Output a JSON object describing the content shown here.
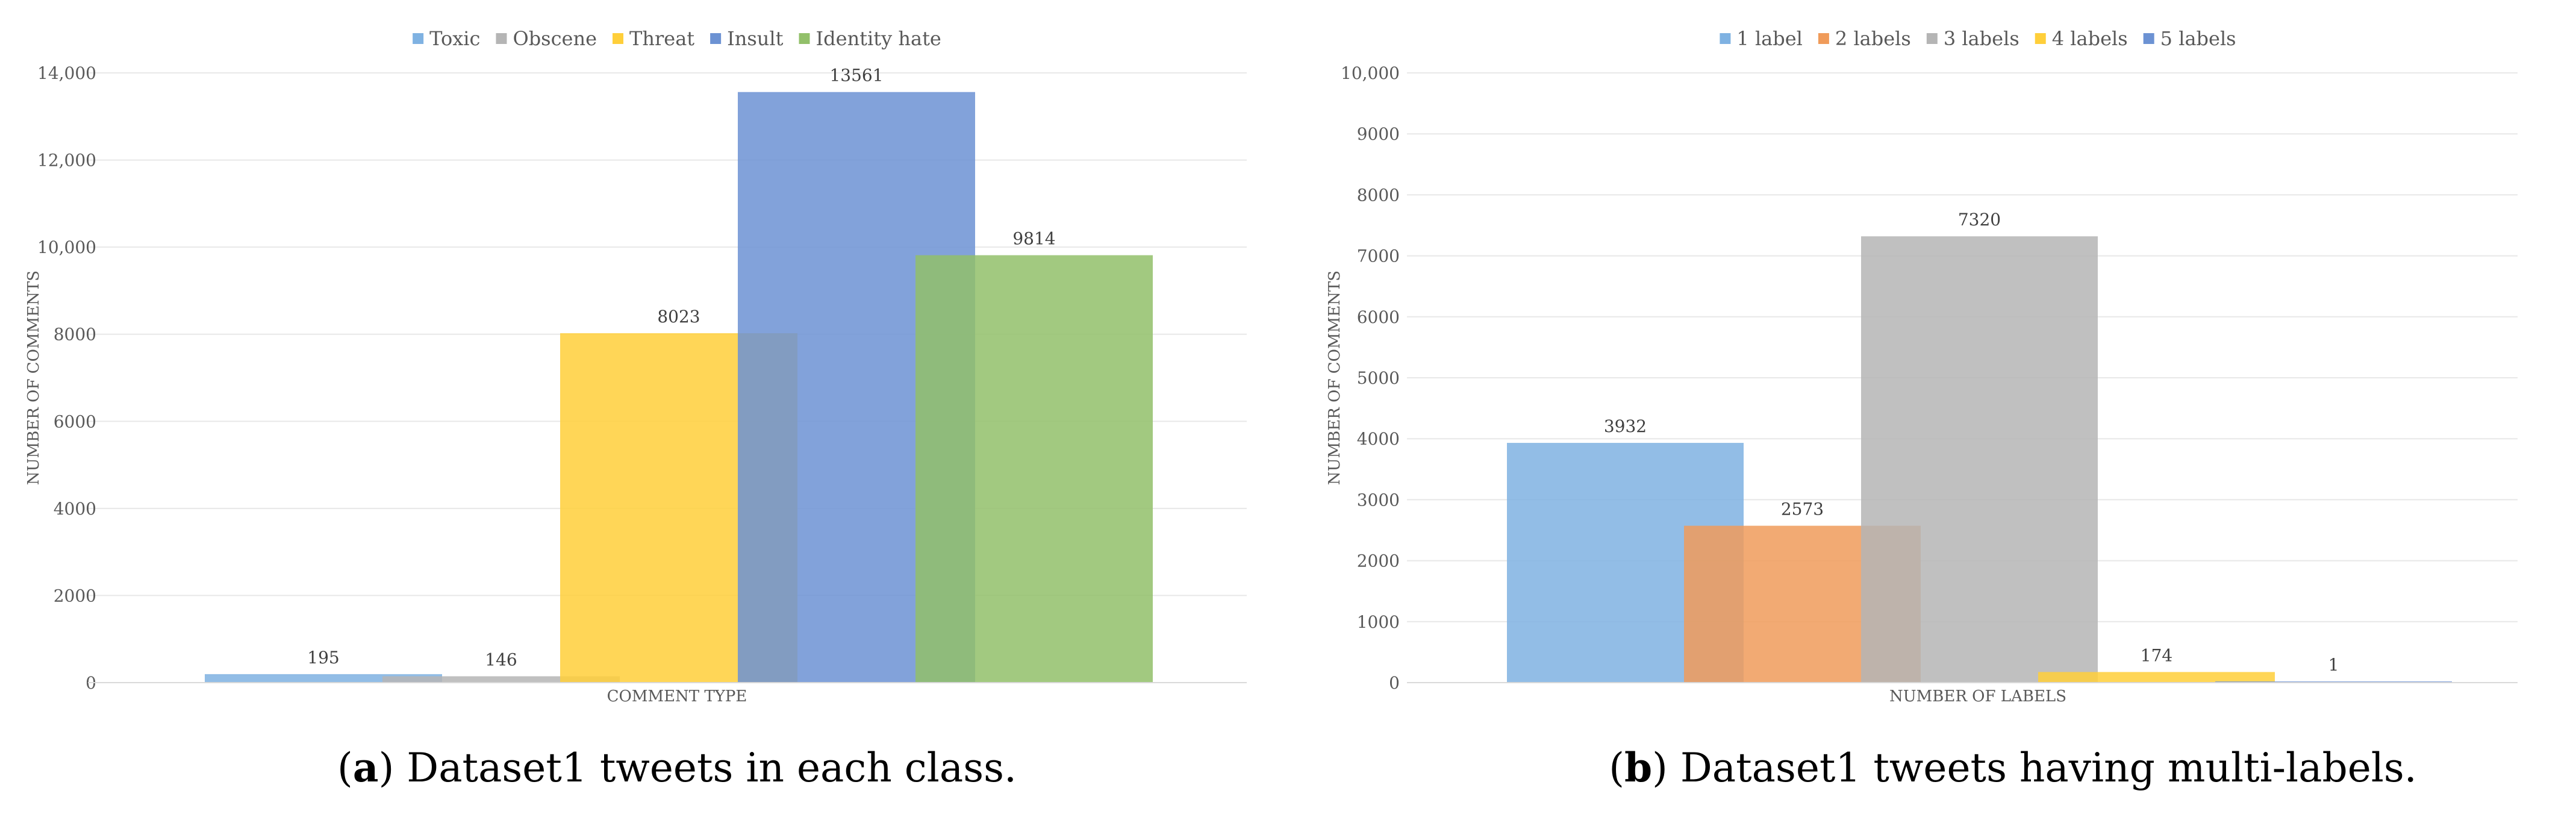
{
  "chart_data": [
    {
      "type": "bar",
      "title": "",
      "xlabel": "COMMENT TYPE",
      "ylabel": "NUMBER OF COMMENTS",
      "ylim": [
        0,
        14000
      ],
      "yticks": [
        "0",
        "2000",
        "4000",
        "6000",
        "8000",
        "10,000",
        "12,000",
        "14,000"
      ],
      "ytick_values": [
        0,
        2000,
        4000,
        6000,
        8000,
        10000,
        12000,
        14000
      ],
      "grid": true,
      "legend_position": "top-center",
      "series": [
        {
          "name": "Toxic",
          "value": 195,
          "label": "195",
          "color": "#7FB2E2"
        },
        {
          "name": "Obscene",
          "value": 146,
          "label": "146",
          "color": "#B5B5B5"
        },
        {
          "name": "Threat",
          "value": 8023,
          "label": "8023",
          "color": "#FFCF3A"
        },
        {
          "name": "Insult",
          "value": 13561,
          "label": "13561",
          "color": "#6C92D3"
        },
        {
          "name": "Identity hate",
          "value": 9814,
          "label": "9814",
          "color": "#92C06A"
        }
      ],
      "caption_prefix": "(",
      "caption_letter": "a",
      "caption_text": ") Dataset1 tweets in each class."
    },
    {
      "type": "bar",
      "title": "",
      "xlabel": "NUMBER OF LABELS",
      "ylabel": "NUMBER OF COMMENTS",
      "ylim": [
        0,
        10000
      ],
      "yticks": [
        "0",
        "1000",
        "2000",
        "3000",
        "4000",
        "5000",
        "6000",
        "7000",
        "8000",
        "9000",
        "10,000"
      ],
      "ytick_values": [
        0,
        1000,
        2000,
        3000,
        4000,
        5000,
        6000,
        7000,
        8000,
        9000,
        10000
      ],
      "grid": true,
      "legend_position": "top-center",
      "series": [
        {
          "name": "1 label",
          "value": 3932,
          "label": "3932",
          "color": "#7FB2E2"
        },
        {
          "name": "2 labels",
          "value": 2573,
          "label": "2573",
          "color": "#F09B5A"
        },
        {
          "name": "3 labels",
          "value": 7320,
          "label": "7320",
          "color": "#B5B5B5"
        },
        {
          "name": "4 labels",
          "value": 174,
          "label": "174",
          "color": "#FFCF3A"
        },
        {
          "name": "5 labels",
          "value": 1,
          "label": "1",
          "color": "#6C92D3"
        }
      ],
      "caption_prefix": "(",
      "caption_letter": "b",
      "caption_text": ") Dataset1 tweets having multi-labels."
    }
  ]
}
